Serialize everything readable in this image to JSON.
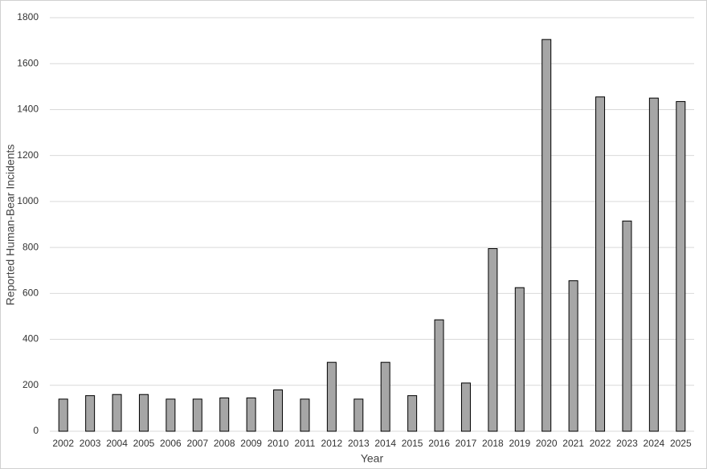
{
  "chart_data": {
    "type": "bar",
    "x_label": "Year",
    "y_label": "Reported Human-Bear Incidents",
    "categories": [
      "2002",
      "2003",
      "2004",
      "2005",
      "2006",
      "2007",
      "2008",
      "2009",
      "2010",
      "2011",
      "2012",
      "2013",
      "2014",
      "2015",
      "2016",
      "2017",
      "2018",
      "2019",
      "2020",
      "2021",
      "2022",
      "2023",
      "2024",
      "2025"
    ],
    "values": [
      140,
      155,
      160,
      160,
      140,
      140,
      145,
      145,
      180,
      140,
      300,
      140,
      300,
      155,
      485,
      210,
      795,
      625,
      1705,
      655,
      1455,
      915,
      1450,
      1435
    ],
    "color": "#a6a6a6",
    "ylim": [
      0,
      1800
    ],
    "yticks": [
      0,
      200,
      400,
      600,
      800,
      1000,
      1200,
      1400,
      1600,
      1800
    ],
    "grid": true
  }
}
